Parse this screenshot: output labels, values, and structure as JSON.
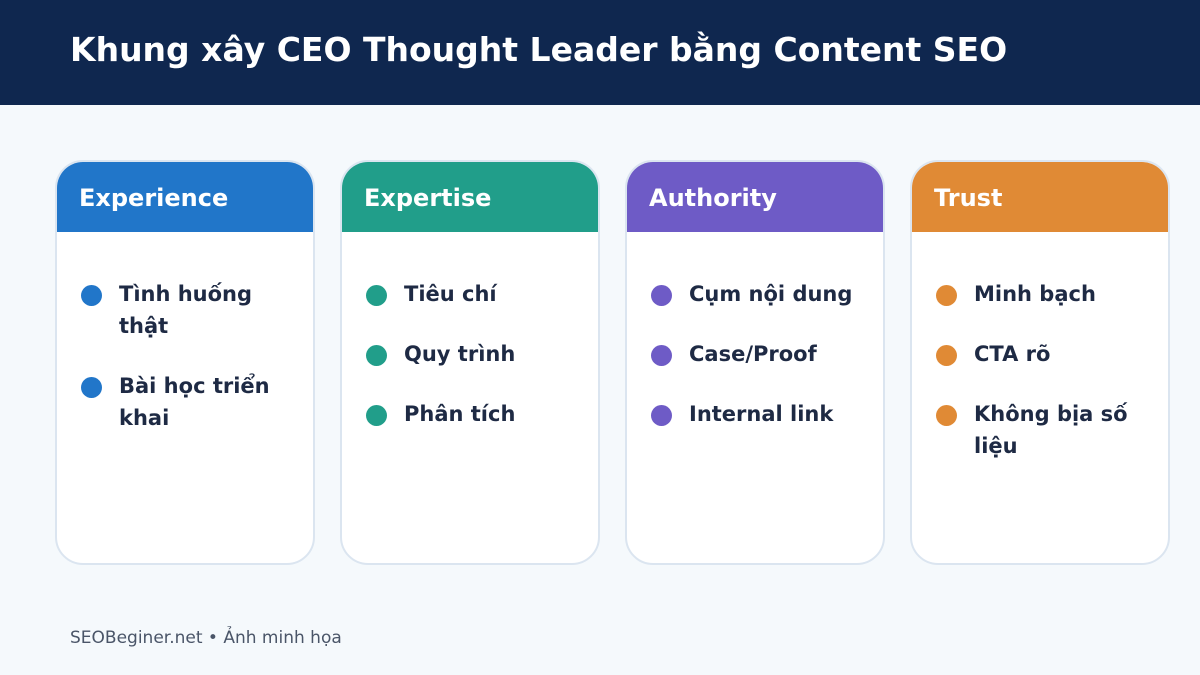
{
  "header": {
    "title": "Khung xây CEO Thought Leader bằng Content SEO"
  },
  "cards": [
    {
      "title": "Experience",
      "color": "#2176c9",
      "items": [
        "Tình huống thật",
        "Bài học triển khai"
      ]
    },
    {
      "title": "Expertise",
      "color": "#219e8a",
      "items": [
        "Tiêu chí",
        "Quy trình",
        "Phân tích"
      ]
    },
    {
      "title": "Authority",
      "color": "#6e5bc6",
      "items": [
        "Cụm nội dung",
        "Case/Proof",
        "Internal link"
      ]
    },
    {
      "title": "Trust",
      "color": "#e08a35",
      "items": [
        "Minh bạch",
        "CTA rõ",
        "Không bịa số liệu"
      ]
    }
  ],
  "footer": {
    "text": "SEOBeginer.net • Ảnh minh họa"
  }
}
